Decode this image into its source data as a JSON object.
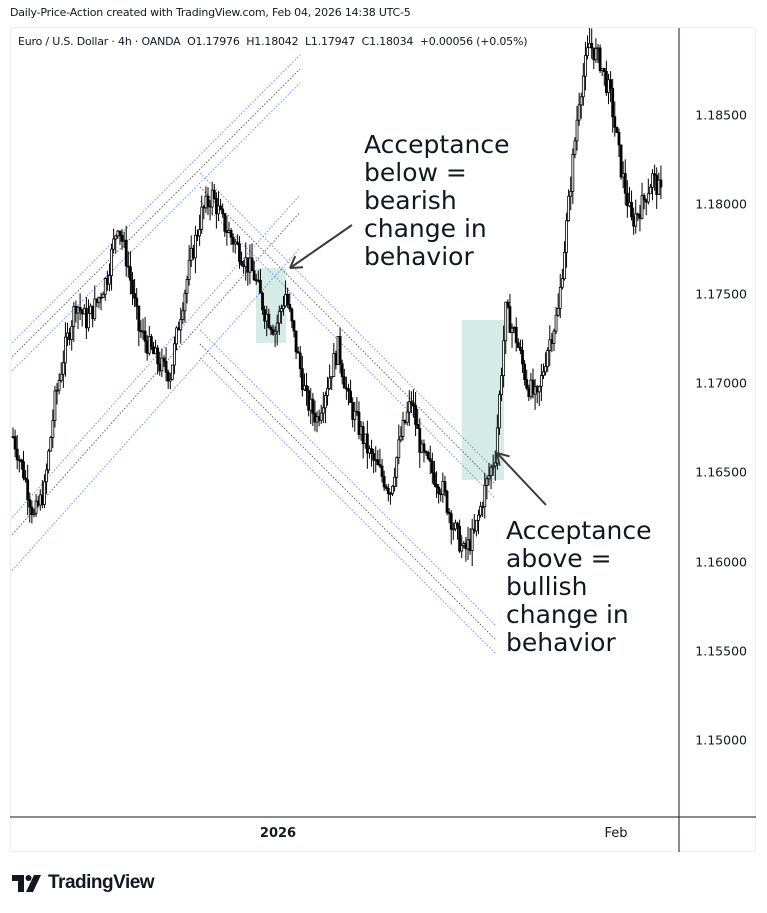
{
  "credit": "Daily-Price-Action created with TradingView.com, Feb 04, 2026 14:38 UTC-5",
  "legend": {
    "symbol": "Euro / U.S. Dollar",
    "interval": "4h",
    "exchange": "OANDA",
    "open": "O1.17976",
    "high": "H1.18042",
    "low": "L1.17947",
    "close": "C1.18034",
    "change": "+0.00056 (+0.05%)"
  },
  "legend_text": "Euro / U.S. Dollar · 4h · OANDA  O1.17976  H1.18042  L1.17947  C1.18034  +0.00056 (+0.05%)",
  "annotations": {
    "bearish": "Acceptance\nbelow =\nbearish\nchange in\nbehavior",
    "bullish": "Acceptance\nabove =\nbullish\nchange in\nbehavior"
  },
  "logo_text": "TradingView",
  "colors": {
    "candle": "#000000",
    "highlight": "#d4ebe6",
    "channel_outer": "#5b7ff0",
    "channel_mid": "#4a4a4a",
    "axis_line": "#131722",
    "arrow": "#3a3a3a"
  },
  "chart_data": {
    "type": "candlestick",
    "title": "Euro / U.S. Dollar · 4h · OANDA",
    "xlabel": "",
    "ylabel": "Price",
    "y_ticks": [
      "1.18500",
      "1.18000",
      "1.17500",
      "1.17000",
      "1.16500",
      "1.16000",
      "1.15500",
      "1.15000"
    ],
    "x_ticks": [
      "2026",
      "Feb"
    ],
    "ylim": [
      1.1465,
      1.1895
    ],
    "grid": false,
    "last_bar": {
      "open": 1.17976,
      "high": 1.18042,
      "low": 1.17947,
      "close": 1.18034,
      "change": 0.00056,
      "change_pct": 0.05
    },
    "approx_close_path": [
      1.167,
      1.165,
      1.1625,
      1.164,
      1.169,
      1.172,
      1.1745,
      1.1735,
      1.1745,
      1.176,
      1.179,
      1.1765,
      1.173,
      1.172,
      1.171,
      1.1705,
      1.174,
      1.177,
      1.1795,
      1.1805,
      1.179,
      1.178,
      1.177,
      1.176,
      1.174,
      1.173,
      1.175,
      1.172,
      1.169,
      1.168,
      1.17,
      1.172,
      1.169,
      1.1675,
      1.166,
      1.165,
      1.164,
      1.167,
      1.169,
      1.166,
      1.165,
      1.164,
      1.162,
      1.1605,
      1.1615,
      1.164,
      1.166,
      1.174,
      1.1725,
      1.17,
      1.169,
      1.172,
      1.174,
      1.18,
      1.186,
      1.189,
      1.188,
      1.186,
      1.182,
      1.179,
      1.18,
      1.1815,
      1.1803
    ],
    "annotations": [
      {
        "text": "Acceptance below = bearish change in behavior",
        "zone": "late Dec 2025",
        "price_range": [
          1.1722,
          1.1765
        ]
      },
      {
        "text": "Acceptance above = bullish change in behavior",
        "zone": "mid Jan 2026",
        "price_range": [
          1.1645,
          1.1735
        ]
      }
    ]
  }
}
